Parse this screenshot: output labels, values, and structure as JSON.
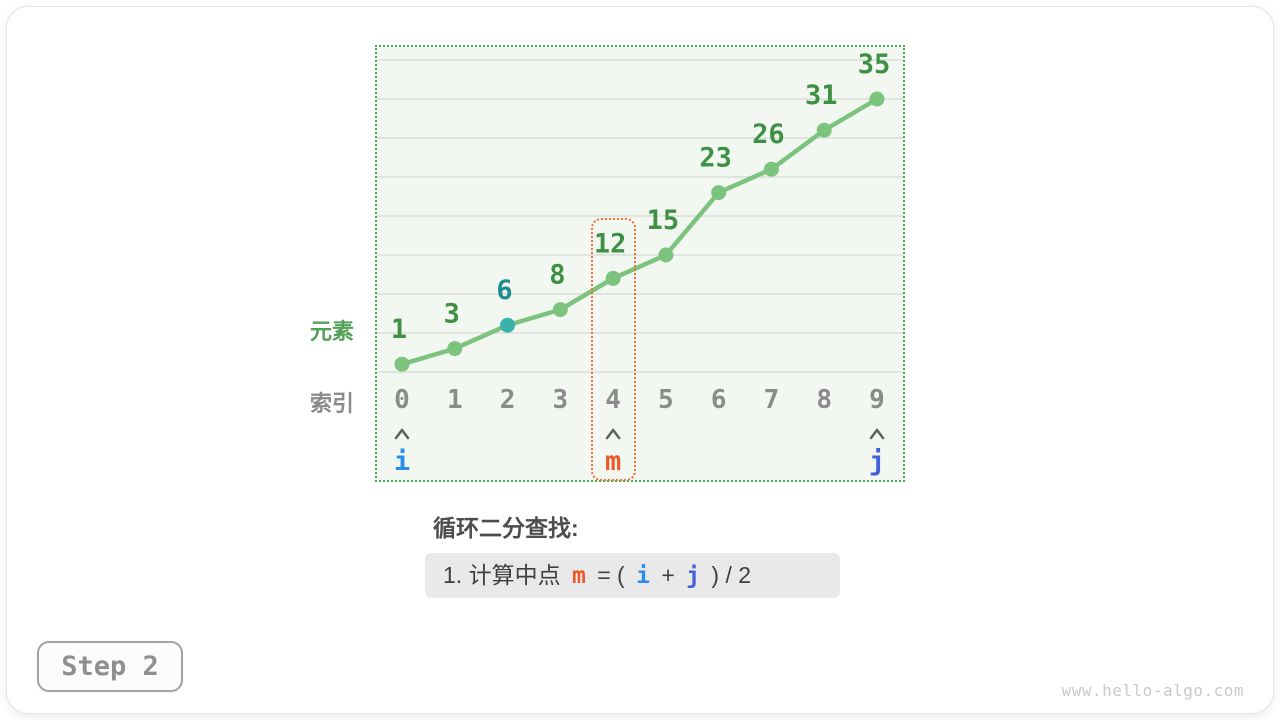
{
  "page": {
    "caption": "循环二分查找:",
    "step_badge": "Step 2",
    "watermark": "www.hello-algo.com"
  },
  "axis_labels": {
    "y": "元素",
    "x": "索引"
  },
  "formula": {
    "part1": "1. 计算中点 ",
    "m": "m",
    "part2": " = ( ",
    "i": "i",
    "part3": " + ",
    "j": "j",
    "part4": " ) / 2"
  },
  "colors": {
    "chart_bg": "#f2f7f1",
    "chart_border": "#4cae50",
    "gridline": "#d9ded9",
    "line": "#7cc47d",
    "point": "#7cc47d",
    "highlight_point": "#3cb1aa",
    "value_label": "#3e9142",
    "highlight_value_label": "#1e8d8f",
    "index_label": "#8b8b8b",
    "caret": "#5f5f5f",
    "pointer_i": "#2a8ceb",
    "pointer_m": "#ea5b2b",
    "pointer_j": "#4360d8",
    "selection_box": "#f0703c"
  },
  "chart_data": {
    "type": "line",
    "title": "",
    "xlabel": "索引",
    "ylabel": "元素",
    "categories": [
      0,
      1,
      2,
      3,
      4,
      5,
      6,
      7,
      8,
      9
    ],
    "values": [
      1,
      3,
      6,
      8,
      12,
      15,
      23,
      26,
      31,
      35
    ],
    "highlight_index": 2,
    "ylim": [
      0,
      40
    ],
    "grid_step": 5,
    "grid": true,
    "legend": false,
    "pointers": [
      {
        "label": "i",
        "index": 0,
        "color_key": "pointer_i"
      },
      {
        "label": "m",
        "index": 4,
        "color_key": "pointer_m"
      },
      {
        "label": "j",
        "index": 9,
        "color_key": "pointer_j"
      }
    ],
    "selection_box_index": 4
  }
}
